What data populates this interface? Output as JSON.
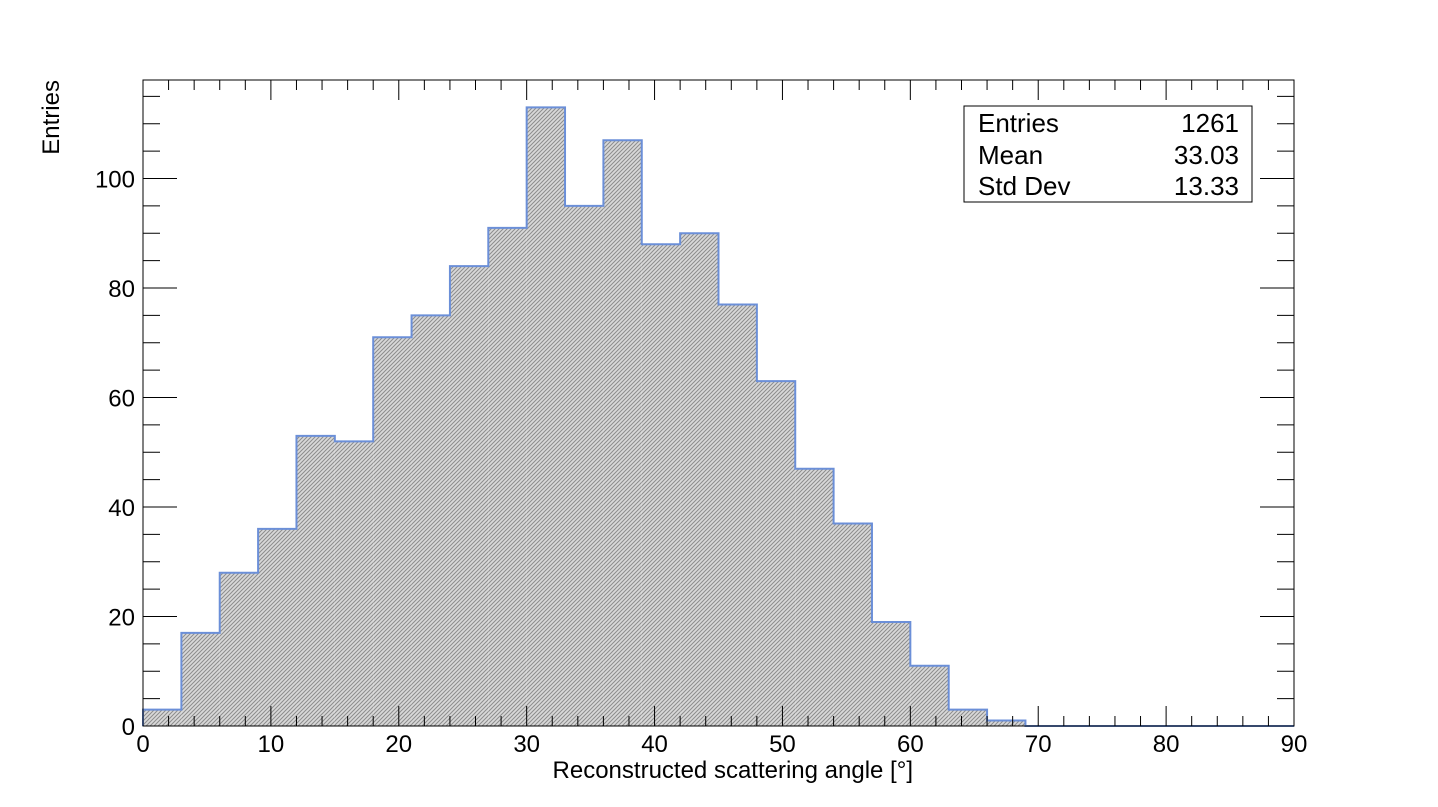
{
  "chart_data": {
    "type": "bar",
    "bin_width": 3,
    "x_bin_edges_start": 0,
    "values": [
      3,
      17,
      28,
      36,
      53,
      52,
      71,
      75,
      84,
      91,
      113,
      95,
      107,
      88,
      90,
      77,
      63,
      47,
      37,
      19,
      11,
      3,
      1,
      0,
      0,
      0,
      0,
      0,
      0,
      0
    ],
    "xlim": [
      0,
      90
    ],
    "ylim": [
      0,
      118
    ],
    "x_ticks": [
      0,
      10,
      20,
      30,
      40,
      50,
      60,
      70,
      80,
      90
    ],
    "y_ticks": [
      0,
      20,
      40,
      60,
      80,
      100
    ],
    "xlabel": "Reconstructed scattering angle [°]",
    "ylabel": "Entries",
    "fill_color": "#8c8c8c",
    "line_color": "#6b8fd8",
    "stats_box": {
      "rows": [
        {
          "label": "Entries",
          "value": "1261"
        },
        {
          "label": "Mean",
          "value": "33.03"
        },
        {
          "label": "Std Dev",
          "value": "13.33"
        }
      ]
    }
  }
}
